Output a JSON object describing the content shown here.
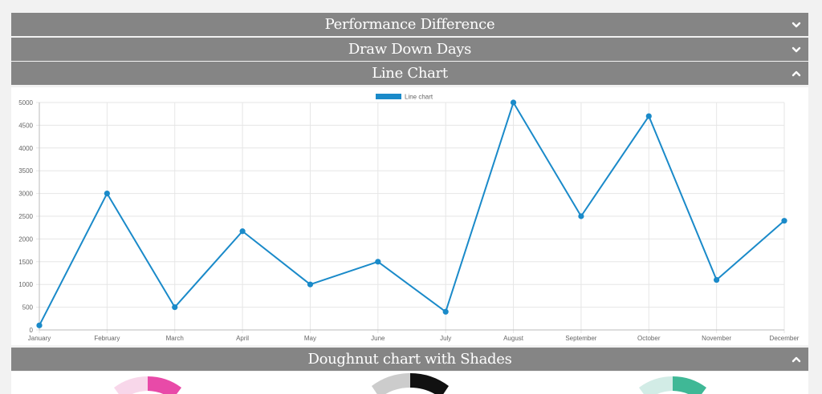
{
  "accordion": [
    {
      "title": "Performance Difference",
      "state": "collapsed",
      "icon": "chevron-down-icon"
    },
    {
      "title": "Draw Down Days",
      "state": "collapsed",
      "icon": "chevron-down-icon"
    },
    {
      "title": "Line Chart",
      "state": "expanded",
      "icon": "chevron-up-icon"
    },
    {
      "title": "Doughnut chart with Shades",
      "state": "expanded",
      "icon": "chevron-up-icon"
    }
  ],
  "colors": {
    "header_bg": "#858585",
    "line": "#1a8ac9",
    "doughnut_1": [
      "#f8d7ea",
      "#e84aa8"
    ],
    "doughnut_2": [
      "#cccccc",
      "#111111"
    ],
    "doughnut_3": [
      "#d2ece6",
      "#3fb896"
    ]
  },
  "chart_data": {
    "type": "line",
    "legend": {
      "label": "Line chart",
      "placement": "top-center"
    },
    "categories": [
      "January",
      "February",
      "March",
      "April",
      "May",
      "June",
      "July",
      "August",
      "September",
      "October",
      "November",
      "December"
    ],
    "series": [
      {
        "name": "Line chart",
        "values": [
          100,
          3000,
          500,
          2170,
          1000,
          1500,
          400,
          5000,
          2500,
          4700,
          1100,
          2400
        ]
      }
    ],
    "yticks": [
      0,
      500,
      1000,
      1500,
      2000,
      2500,
      3000,
      3500,
      4000,
      4500,
      5000
    ],
    "ylim": [
      0,
      5000
    ],
    "grid": true
  }
}
